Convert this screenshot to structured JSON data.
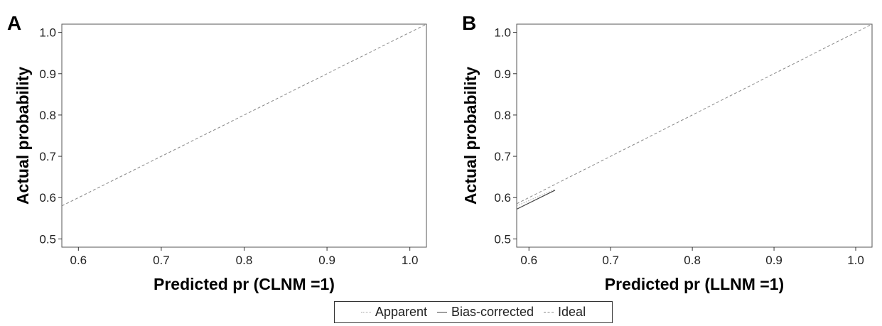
{
  "chart_data": [
    {
      "type": "line",
      "panel_label": "A",
      "xlabel": "Predicted pr (CLNM =1)",
      "ylabel": "Actual probability",
      "xlim": [
        0.58,
        1.02
      ],
      "ylim": [
        0.48,
        1.02
      ],
      "xticks": [
        "0.6",
        "0.7",
        "0.8",
        "0.9",
        "1.0"
      ],
      "yticks": [
        "0.5",
        "0.6",
        "0.7",
        "0.8",
        "0.9",
        "1.0"
      ],
      "grid": false,
      "series": [
        {
          "name": "Apparent",
          "style": "dotted",
          "color": "#aaaaaa",
          "x": [],
          "y": []
        },
        {
          "name": "Bias-corrected",
          "style": "solid",
          "color": "#444444",
          "x": [],
          "y": []
        },
        {
          "name": "Ideal",
          "style": "dashed",
          "color": "#888888",
          "x": [
            0.58,
            1.02
          ],
          "y": [
            0.58,
            1.02
          ]
        }
      ]
    },
    {
      "type": "line",
      "panel_label": "B",
      "xlabel": "Predicted pr (LLNM =1)",
      "ylabel": "Actual probability",
      "xlim": [
        0.585,
        1.02
      ],
      "ylim": [
        0.48,
        1.02
      ],
      "xticks": [
        "0.6",
        "0.7",
        "0.8",
        "0.9",
        "1.0"
      ],
      "yticks": [
        "0.5",
        "0.6",
        "0.7",
        "0.8",
        "0.9",
        "1.0"
      ],
      "grid": false,
      "series": [
        {
          "name": "Apparent",
          "style": "dotted",
          "color": "#aaaaaa",
          "x": [
            0.585,
            0.632
          ],
          "y": [
            0.58,
            0.62
          ]
        },
        {
          "name": "Bias-corrected",
          "style": "solid",
          "color": "#444444",
          "x": [
            0.585,
            0.632
          ],
          "y": [
            0.572,
            0.618
          ]
        },
        {
          "name": "Ideal",
          "style": "dashed",
          "color": "#888888",
          "x": [
            0.585,
            1.02
          ],
          "y": [
            0.585,
            1.02
          ]
        }
      ]
    }
  ],
  "legend": {
    "items": [
      {
        "label": "Apparent",
        "style": "dotted",
        "color": "#aaaaaa"
      },
      {
        "label": "Bias-corrected",
        "style": "solid",
        "color": "#444444"
      },
      {
        "label": "Ideal",
        "style": "dashed",
        "color": "#888888"
      }
    ]
  }
}
